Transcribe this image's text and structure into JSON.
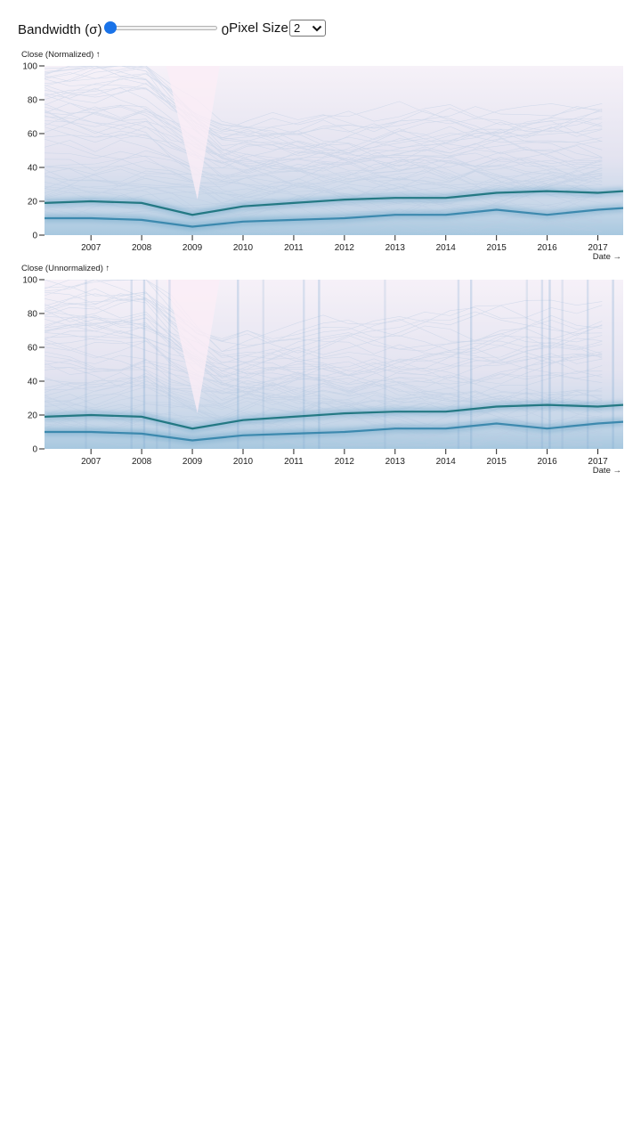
{
  "controls": {
    "bandwidth_label": "Bandwidth (σ)",
    "bandwidth_value": "0",
    "bandwidth_fraction": 0,
    "pixel_size_label": "Pixel Size",
    "pixel_size_value": "2"
  },
  "colors": {
    "density_low": "#f3eef7",
    "density_mid": "#7fb3d2",
    "density_high": "#0d6b73",
    "slider_thumb": "#1a73e8"
  },
  "chart_data": [
    {
      "type": "heatmap",
      "ylabel": "Close (Normalized) ↑",
      "xlabel": "Date →",
      "ylim": [
        0,
        100
      ],
      "yticks": [
        0,
        20,
        40,
        60,
        80,
        100
      ],
      "xticks": [
        "2007",
        "2008",
        "2009",
        "2010",
        "2011",
        "2012",
        "2013",
        "2014",
        "2015",
        "2016",
        "2017"
      ],
      "xlim": [
        "2006-02",
        "2017-07"
      ],
      "bands": [
        {
          "x": [
            "2006-02",
            "2007-01",
            "2008-01",
            "2009-01",
            "2010-01",
            "2011-01",
            "2012-01",
            "2013-01",
            "2014-01",
            "2015-01",
            "2016-01",
            "2017-01",
            "2017-07"
          ],
          "y": [
            10,
            10,
            9,
            5,
            8,
            9,
            10,
            12,
            12,
            15,
            12,
            15,
            16
          ]
        },
        {
          "x": [
            "2006-02",
            "2007-01",
            "2008-01",
            "2009-01",
            "2010-01",
            "2011-01",
            "2012-01",
            "2013-01",
            "2014-01",
            "2015-01",
            "2016-01",
            "2017-01",
            "2017-07"
          ],
          "y": [
            19,
            20,
            19,
            12,
            17,
            19,
            21,
            22,
            22,
            25,
            26,
            25,
            26
          ]
        }
      ]
    },
    {
      "type": "heatmap",
      "ylabel": "Close (Unnormalized) ↑",
      "xlabel": "Date →",
      "ylim": [
        0,
        100
      ],
      "yticks": [
        0,
        20,
        40,
        60,
        80,
        100
      ],
      "xticks": [
        "2007",
        "2008",
        "2009",
        "2010",
        "2011",
        "2012",
        "2013",
        "2014",
        "2015",
        "2016",
        "2017"
      ],
      "xlim": [
        "2006-02",
        "2017-07"
      ],
      "bands": [
        {
          "x": [
            "2006-02",
            "2007-01",
            "2008-01",
            "2009-01",
            "2010-01",
            "2011-01",
            "2012-01",
            "2013-01",
            "2014-01",
            "2015-01",
            "2016-01",
            "2017-01",
            "2017-07"
          ],
          "y": [
            10,
            10,
            9,
            5,
            8,
            9,
            10,
            12,
            12,
            15,
            12,
            15,
            16
          ]
        },
        {
          "x": [
            "2006-02",
            "2007-01",
            "2008-01",
            "2009-01",
            "2010-01",
            "2011-01",
            "2012-01",
            "2013-01",
            "2014-01",
            "2015-01",
            "2016-01",
            "2017-01",
            "2017-07"
          ],
          "y": [
            19,
            20,
            19,
            12,
            17,
            19,
            21,
            22,
            22,
            25,
            26,
            25,
            26
          ]
        }
      ]
    }
  ]
}
